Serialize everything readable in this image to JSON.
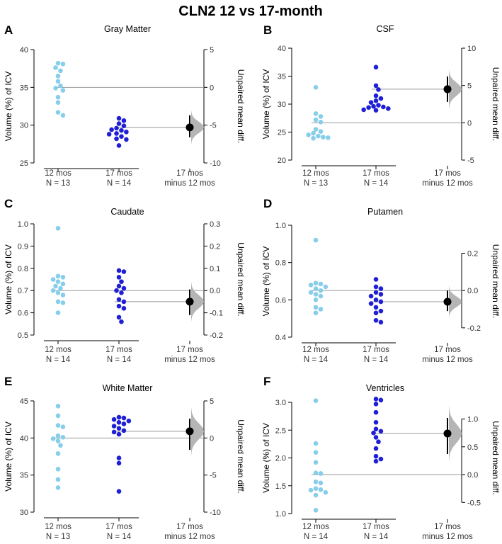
{
  "figure_title": "CLN2 12 vs 17-month",
  "colors": {
    "group1": "#87ceeb",
    "group2": "#1f1fd6",
    "effect": "#000000",
    "bootstrap": "#b5b5b5"
  },
  "chart_data": [
    {
      "type": "scatter",
      "letter": "A",
      "title": "Gray Matter",
      "ylabel": "Volume (%) of ICV",
      "ylabel_right": "Unpaired mean diff.",
      "ylim": [
        25,
        40
      ],
      "yticks": [
        25,
        30,
        35,
        40
      ],
      "right_ylim": [
        -10,
        5
      ],
      "right_ticks": [
        -10,
        -5,
        0,
        5
      ],
      "categories": [
        {
          "label": "12 mos",
          "n_label": "N = 13"
        },
        {
          "label": "17 mos",
          "n_label": "N = 14"
        },
        {
          "label": "17 mos",
          "n_label": "minus 12 mos"
        }
      ],
      "series": [
        {
          "name": "12 mos",
          "values": [
            38.2,
            38.1,
            37.6,
            37.2,
            36.5,
            35.8,
            35.2,
            34.9,
            34.6,
            33.7,
            33.0,
            31.7,
            31.3
          ]
        },
        {
          "name": "17 mos",
          "values": [
            30.9,
            30.6,
            30.2,
            29.9,
            29.6,
            29.4,
            29.3,
            29.1,
            28.9,
            28.8,
            28.5,
            28.2,
            28.1,
            27.3
          ]
        }
      ],
      "mean_diff": -5.3,
      "ci": [
        -6.6,
        -3.7
      ]
    },
    {
      "type": "scatter",
      "letter": "B",
      "title": "CSF",
      "ylabel": "Volume (%) of ICV",
      "ylabel_right": "Unpaired mean diff.",
      "ylim": [
        20,
        40
      ],
      "yticks": [
        20,
        25,
        30,
        35,
        40
      ],
      "right_ylim": [
        -5,
        10
      ],
      "right_ticks": [
        -5,
        0,
        5,
        10
      ],
      "categories": [
        {
          "label": "12 mos",
          "n_label": "N = 13"
        },
        {
          "label": "17 mos",
          "n_label": "N = 14"
        },
        {
          "label": "17 mos",
          "n_label": "minus 12 mos"
        }
      ],
      "series": [
        {
          "name": "12 mos",
          "values": [
            33.0,
            28.3,
            27.8,
            27.2,
            26.8,
            25.5,
            25.1,
            24.8,
            24.5,
            24.3,
            24.1,
            24.0,
            23.9
          ]
        },
        {
          "name": "17 mos",
          "values": [
            36.6,
            33.3,
            32.6,
            31.5,
            31.0,
            30.6,
            30.3,
            29.8,
            29.6,
            29.5,
            29.4,
            29.2,
            29.0,
            28.9
          ]
        },
        {
          "name": "",
          "values": []
        }
      ],
      "mean_diff": 4.5,
      "ci": [
        2.8,
        6.2
      ]
    },
    {
      "type": "scatter",
      "letter": "C",
      "title": "Caudate",
      "ylabel": "Volume (%) of ICV",
      "ylabel_right": "Unpaired mean diff.",
      "ylim": [
        0.5,
        1.0
      ],
      "yticks": [
        0.5,
        0.6,
        0.7,
        0.8,
        0.9,
        1.0
      ],
      "ytick_labels": [
        "0.5",
        "0.6",
        "0.7",
        "0.8",
        "0.9",
        "1.0"
      ],
      "right_ylim": [
        -0.2,
        0.3
      ],
      "right_ticks": [
        -0.2,
        -0.1,
        0.0,
        0.1,
        0.2,
        0.3
      ],
      "right_tick_labels": [
        "-0.2",
        "-0.1",
        "0.0",
        "0.1",
        "0.2",
        "0.3"
      ],
      "categories": [
        {
          "label": "12 mos",
          "n_label": "N = 14"
        },
        {
          "label": "17 mos",
          "n_label": "N = 14"
        },
        {
          "label": "17 mos",
          "n_label": "minus 12 mos"
        }
      ],
      "series": [
        {
          "name": "12 mos",
          "values": [
            0.98,
            0.765,
            0.76,
            0.75,
            0.74,
            0.73,
            0.72,
            0.71,
            0.7,
            0.69,
            0.68,
            0.65,
            0.645,
            0.6
          ]
        },
        {
          "name": "17 mos",
          "values": [
            0.79,
            0.785,
            0.76,
            0.74,
            0.72,
            0.71,
            0.7,
            0.69,
            0.66,
            0.65,
            0.63,
            0.62,
            0.58,
            0.56
          ]
        }
      ],
      "mean_diff": -0.05,
      "ci": [
        -0.11,
        0.005
      ]
    },
    {
      "type": "scatter",
      "letter": "D",
      "title": "Putamen",
      "ylabel": "Volume (%) of ICV",
      "ylabel_right": "Unpaired mean diff.",
      "ylim": [
        0.4,
        1.0
      ],
      "yticks": [
        0.4,
        0.6,
        0.8,
        1.0
      ],
      "ytick_labels": [
        "0.4",
        "0.6",
        "0.8",
        "1.0"
      ],
      "right_ylim": [
        -0.25,
        0.35
      ],
      "right_ticks": [
        -0.2,
        0.0,
        0.2
      ],
      "right_tick_labels": [
        "-0.2",
        "0.0",
        "0.2"
      ],
      "categories": [
        {
          "label": "12 mos",
          "n_label": "N = 14"
        },
        {
          "label": "17 mos",
          "n_label": "N = 14"
        },
        {
          "label": "17 mos",
          "n_label": "minus 12 mos"
        }
      ],
      "series": [
        {
          "name": "12 mos",
          "values": [
            0.92,
            0.69,
            0.685,
            0.68,
            0.67,
            0.66,
            0.65,
            0.64,
            0.63,
            0.62,
            0.6,
            0.56,
            0.55,
            0.53
          ]
        },
        {
          "name": "17 mos",
          "values": [
            0.71,
            0.67,
            0.66,
            0.64,
            0.63,
            0.62,
            0.6,
            0.59,
            0.58,
            0.56,
            0.54,
            0.53,
            0.49,
            0.48
          ]
        }
      ],
      "mean_diff": -0.06,
      "ci": [
        -0.11,
        0.0
      ]
    },
    {
      "type": "scatter",
      "letter": "E",
      "title": "White Matter",
      "ylabel": "Volume (%) of ICV",
      "ylabel_right": "Unpaired mean diff.",
      "ylim": [
        30,
        45
      ],
      "yticks": [
        30,
        35,
        40,
        45
      ],
      "right_ylim": [
        -10,
        5
      ],
      "right_ticks": [
        -10,
        -5,
        0,
        5
      ],
      "categories": [
        {
          "label": "12 mos",
          "n_label": "N = 13"
        },
        {
          "label": "17 mos",
          "n_label": "N = 14"
        },
        {
          "label": "17 mos",
          "n_label": "minus 12 mos"
        }
      ],
      "series": [
        {
          "name": "12 mos",
          "values": [
            44.3,
            43.0,
            41.7,
            41.5,
            40.3,
            40.1,
            39.9,
            39.6,
            39.0,
            37.9,
            35.8,
            34.4,
            33.3
          ]
        },
        {
          "name": "17 mos",
          "values": [
            42.8,
            42.7,
            42.5,
            42.3,
            42.1,
            41.9,
            41.6,
            41.3,
            41.0,
            40.8,
            40.5,
            37.3,
            36.6,
            32.8
          ]
        }
      ],
      "mean_diff": 0.9,
      "ci": [
        -1.6,
        2.6
      ]
    },
    {
      "type": "scatter",
      "letter": "F",
      "title": "Ventricles",
      "ylabel": "Volume (%) of ICV",
      "ylabel_right": "Unpaired mean diff.",
      "ylim": [
        1.0,
        3.0
      ],
      "yticks": [
        1.0,
        1.5,
        2.0,
        2.5,
        3.0
      ],
      "ytick_labels": [
        "1.0",
        "1.5",
        "2.0",
        "2.5",
        "3.0"
      ],
      "right_ylim": [
        -0.7,
        1.3
      ],
      "right_ticks": [
        -0.5,
        0.0,
        0.5,
        1.0
      ],
      "right_tick_labels": [
        "-0.5",
        "0.0",
        "0.5",
        "1.0"
      ],
      "categories": [
        {
          "label": "12 mos",
          "n_label": "N = 14"
        },
        {
          "label": "17 mos",
          "n_label": "N = 14"
        },
        {
          "label": "17 mos",
          "n_label": "minus 12 mos"
        }
      ],
      "series": [
        {
          "name": "12 mos",
          "values": [
            3.03,
            2.26,
            2.1,
            1.92,
            1.73,
            1.72,
            1.57,
            1.55,
            1.45,
            1.43,
            1.42,
            1.38,
            1.33,
            1.06
          ]
        },
        {
          "name": "17 mos",
          "values": [
            3.06,
            3.04,
            2.97,
            2.82,
            2.64,
            2.52,
            2.48,
            2.45,
            2.37,
            2.29,
            2.17,
            2.03,
            1.98,
            1.94
          ]
        }
      ],
      "mean_diff": 0.74,
      "ci": [
        0.37,
        1.02
      ]
    }
  ]
}
